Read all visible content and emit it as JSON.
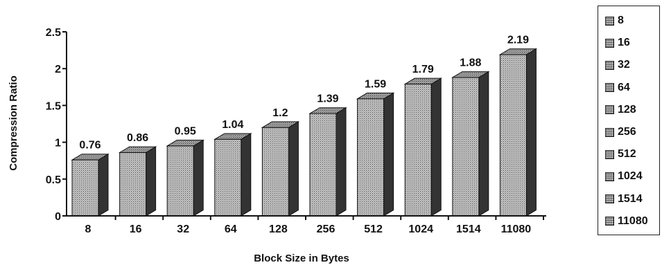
{
  "colors": {
    "bar_front": "#c4c4c4",
    "bar_top": "#9a9a9a",
    "bar_side": "#333333",
    "axis": "#111111"
  },
  "chart_data": {
    "type": "bar",
    "title": "",
    "xlabel": "Block Size in Bytes",
    "ylabel": "Compression Ratio",
    "categories": [
      "8",
      "16",
      "32",
      "64",
      "128",
      "256",
      "512",
      "1024",
      "1514",
      "11080"
    ],
    "values": [
      0.76,
      0.86,
      0.95,
      1.04,
      1.2,
      1.39,
      1.59,
      1.79,
      1.88,
      2.19
    ],
    "data_labels": [
      "0.76",
      "0.86",
      "0.95",
      "1.04",
      "1.2",
      "1.39",
      "1.59",
      "1.79",
      "1.88",
      "2.19"
    ],
    "ylim": [
      0,
      2.5
    ],
    "yticks": [
      0,
      0.5,
      1,
      1.5,
      2,
      2.5
    ],
    "ytick_labels": [
      "0",
      "0.5",
      "1",
      "1.5",
      "2",
      "2.5"
    ],
    "grid": false,
    "style": "3d-bar",
    "legend_position": "right",
    "legend": [
      "8",
      "16",
      "32",
      "64",
      "128",
      "256",
      "512",
      "1024",
      "1514",
      "11080"
    ]
  }
}
